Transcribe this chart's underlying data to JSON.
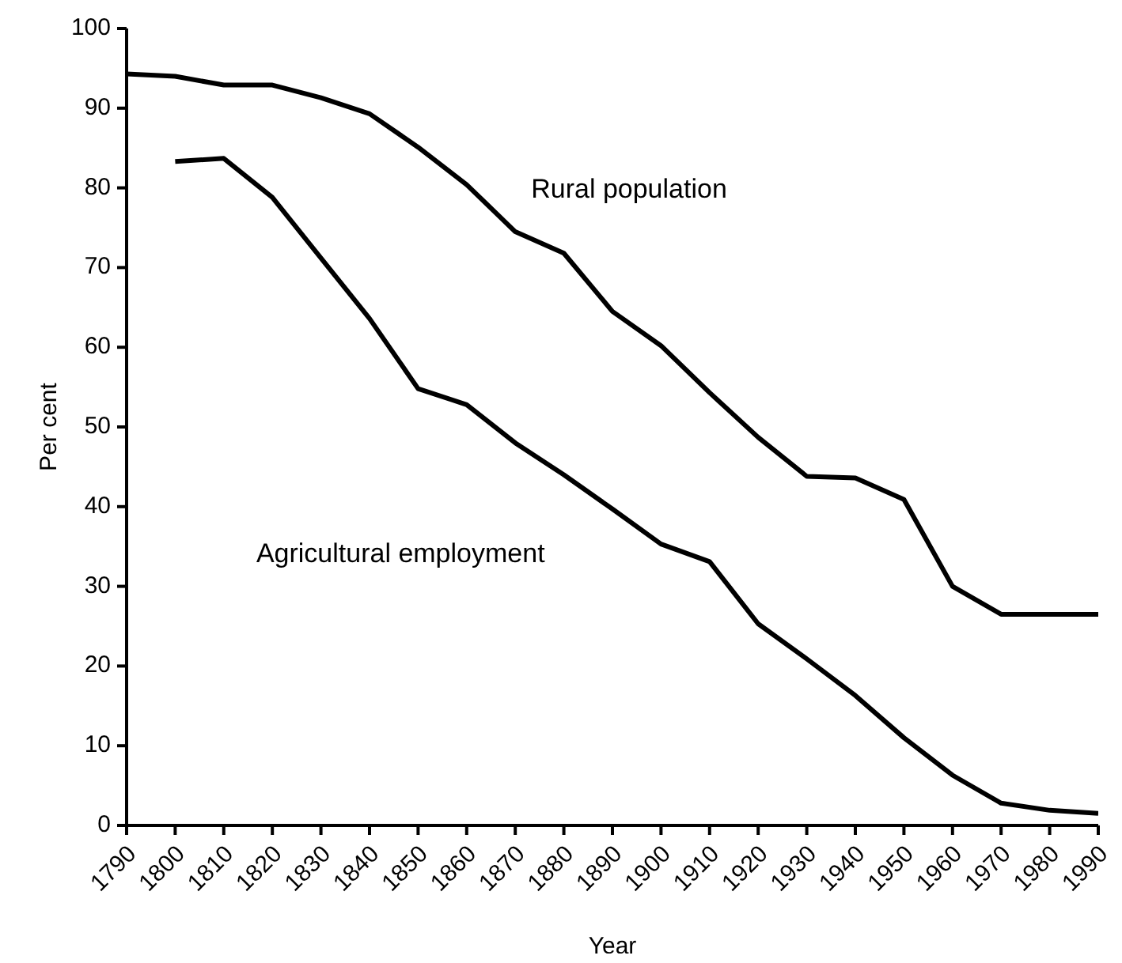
{
  "chart_data": {
    "type": "line",
    "xlabel": "Year",
    "ylabel": "Per cent",
    "x": [
      1790,
      1800,
      1810,
      1820,
      1830,
      1840,
      1850,
      1860,
      1870,
      1880,
      1890,
      1900,
      1910,
      1920,
      1930,
      1940,
      1950,
      1960,
      1970,
      1980,
      1990
    ],
    "series": [
      {
        "name": "Rural population",
        "color": "#000000",
        "values": [
          94.3,
          94.0,
          92.9,
          92.9,
          91.3,
          89.3,
          85.1,
          80.4,
          74.5,
          71.8,
          64.5,
          60.2,
          54.3,
          48.7,
          43.8,
          43.6,
          40.9,
          30.0,
          26.5,
          26.5,
          26.5
        ]
      },
      {
        "name": "Agricultural employment",
        "color": "#000000",
        "values": [
          null,
          83.3,
          83.7,
          78.8,
          71.2,
          63.6,
          54.8,
          52.8,
          48.0,
          44.0,
          39.7,
          35.3,
          33.1,
          25.3,
          20.9,
          16.3,
          11.0,
          6.3,
          2.8,
          1.9,
          1.5
        ]
      }
    ],
    "xlim": [
      1790,
      1990
    ],
    "xticks": [
      1790,
      1800,
      1810,
      1820,
      1830,
      1840,
      1850,
      1860,
      1870,
      1880,
      1890,
      1900,
      1910,
      1920,
      1930,
      1940,
      1950,
      1960,
      1970,
      1980,
      1990
    ],
    "ylim": [
      0,
      100
    ],
    "yticks": [
      0,
      10,
      20,
      30,
      40,
      50,
      60,
      70,
      80,
      90,
      100
    ],
    "grid": false,
    "legend": false,
    "marker": "none",
    "line_style": "solid"
  }
}
